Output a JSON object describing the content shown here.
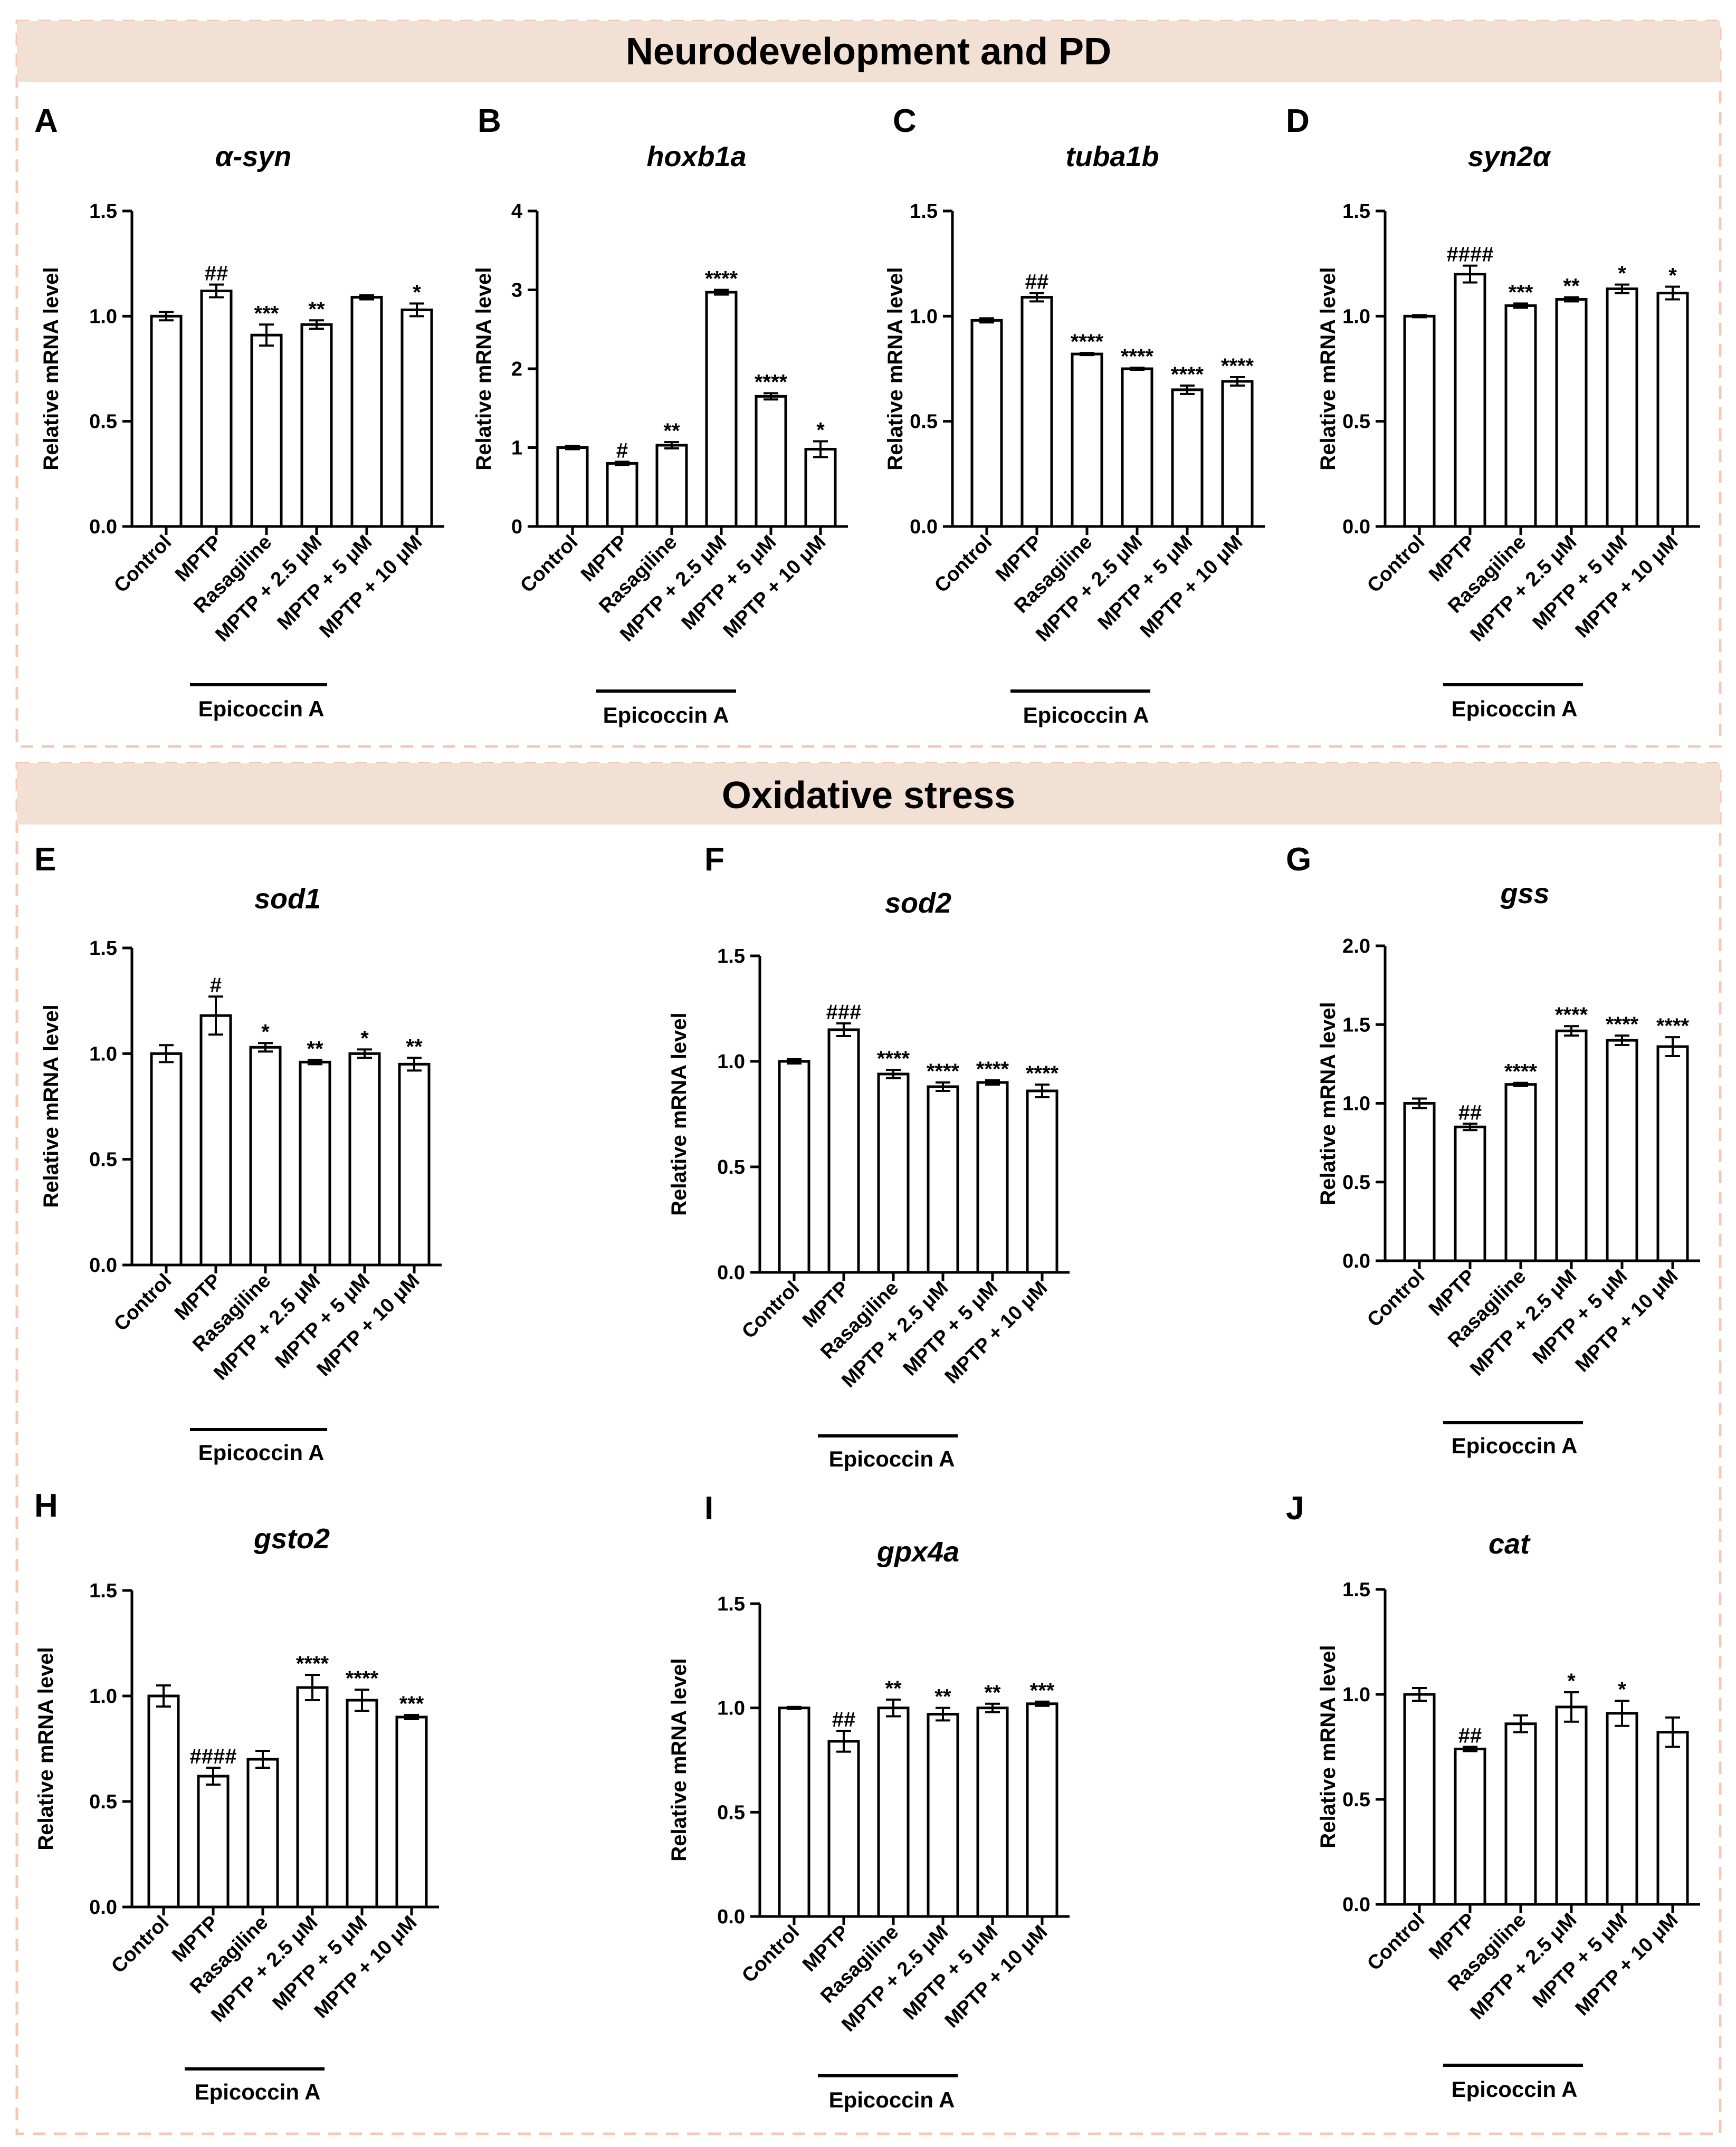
{
  "sections": [
    {
      "title": "Neurodevelopment and PD"
    },
    {
      "title": "Oxidative stress"
    }
  ],
  "categories": [
    "Control",
    "MPTP",
    "Rasagiline",
    "MPTP + 2.5 μM",
    "MPTP + 5 μM",
    "MPTP + 10 μM"
  ],
  "group_label": "Epicoccin A",
  "chart_data": [
    {
      "type": "bar",
      "panel": "A",
      "title": "α-syn",
      "ylabel": "Relative mRNA level",
      "ylim": [
        0,
        1.5
      ],
      "yticks": [
        "0.0",
        "0.5",
        "1.0",
        "1.5"
      ],
      "values": [
        1.0,
        1.12,
        0.91,
        0.96,
        1.09,
        1.03
      ],
      "errors": [
        0.02,
        0.03,
        0.05,
        0.02,
        0.01,
        0.03
      ],
      "annotations": [
        "",
        "##",
        "***",
        "**",
        "",
        "*"
      ]
    },
    {
      "type": "bar",
      "panel": "B",
      "title": "hoxb1a",
      "ylabel": "Relative mRNA level",
      "ylim": [
        0,
        4
      ],
      "yticks": [
        "0",
        "1",
        "2",
        "3",
        "4"
      ],
      "values": [
        1.0,
        0.8,
        1.03,
        2.97,
        1.65,
        0.98
      ],
      "errors": [
        0.02,
        0.02,
        0.04,
        0.03,
        0.04,
        0.1
      ],
      "annotations": [
        "",
        "#",
        "**",
        "****",
        "****",
        "*"
      ]
    },
    {
      "type": "bar",
      "panel": "C",
      "title": "tuba1b",
      "ylabel": "Relative mRNA level",
      "ylim": [
        0,
        1.5
      ],
      "yticks": [
        "0.0",
        "0.5",
        "1.0",
        "1.5"
      ],
      "values": [
        0.98,
        1.09,
        0.82,
        0.75,
        0.65,
        0.69
      ],
      "errors": [
        0.01,
        0.02,
        0.005,
        0.005,
        0.02,
        0.02
      ],
      "annotations": [
        "",
        "##",
        "****",
        "****",
        "****",
        "****"
      ]
    },
    {
      "type": "bar",
      "panel": "D",
      "title": "syn2α",
      "ylabel": "Relative mRNA level",
      "ylim": [
        0,
        1.5
      ],
      "yticks": [
        "0.0",
        "0.5",
        "1.0",
        "1.5"
      ],
      "values": [
        1.0,
        1.2,
        1.05,
        1.08,
        1.13,
        1.11
      ],
      "errors": [
        0.005,
        0.04,
        0.01,
        0.01,
        0.02,
        0.03
      ],
      "annotations": [
        "",
        "####",
        "***",
        "**",
        "*",
        "*"
      ]
    },
    {
      "type": "bar",
      "panel": "E",
      "title": "sod1",
      "ylabel": "Relative mRNA level",
      "ylim": [
        0,
        1.5
      ],
      "yticks": [
        "0.0",
        "0.5",
        "1.0",
        "1.5"
      ],
      "values": [
        1.0,
        1.18,
        1.03,
        0.96,
        1.0,
        0.95
      ],
      "errors": [
        0.04,
        0.09,
        0.02,
        0.01,
        0.02,
        0.03
      ],
      "annotations": [
        "",
        "#",
        "*",
        "**",
        "*",
        "**"
      ]
    },
    {
      "type": "bar",
      "panel": "F",
      "title": "sod2",
      "ylabel": "Relative mRNA level",
      "ylim": [
        0,
        1.5
      ],
      "yticks": [
        "0.0",
        "0.5",
        "1.0",
        "1.5"
      ],
      "values": [
        1.0,
        1.15,
        0.94,
        0.88,
        0.9,
        0.86
      ],
      "errors": [
        0.01,
        0.03,
        0.02,
        0.02,
        0.01,
        0.03
      ],
      "annotations": [
        "",
        "###",
        "****",
        "****",
        "****",
        "****"
      ]
    },
    {
      "type": "bar",
      "panel": "G",
      "title": "gss",
      "ylabel": "Relative mRNA level",
      "ylim": [
        0,
        2.0
      ],
      "yticks": [
        "0.0",
        "0.5",
        "1.0",
        "1.5",
        "2.0"
      ],
      "values": [
        1.0,
        0.85,
        1.12,
        1.46,
        1.4,
        1.36
      ],
      "errors": [
        0.03,
        0.02,
        0.01,
        0.03,
        0.03,
        0.06
      ],
      "annotations": [
        "",
        "##",
        "****",
        "****",
        "****",
        "****"
      ]
    },
    {
      "type": "bar",
      "panel": "H",
      "title": "gsto2",
      "ylabel": "Relative mRNA level",
      "ylim": [
        0,
        1.5
      ],
      "yticks": [
        "0.0",
        "0.5",
        "1.0",
        "1.5"
      ],
      "values": [
        1.0,
        0.62,
        0.7,
        1.04,
        0.98,
        0.9
      ],
      "errors": [
        0.05,
        0.04,
        0.04,
        0.06,
        0.05,
        0.01
      ],
      "annotations": [
        "",
        "####",
        "",
        "****",
        "****",
        "***"
      ]
    },
    {
      "type": "bar",
      "panel": "I",
      "title": "gpx4a",
      "ylabel": "Relative mRNA level",
      "ylim": [
        0,
        1.5
      ],
      "yticks": [
        "0.0",
        "0.5",
        "1.0",
        "1.5"
      ],
      "values": [
        1.0,
        0.84,
        1.0,
        0.97,
        1.0,
        1.02
      ],
      "errors": [
        0.005,
        0.05,
        0.04,
        0.03,
        0.02,
        0.01
      ],
      "annotations": [
        "",
        "##",
        "**",
        "**",
        "**",
        "***"
      ]
    },
    {
      "type": "bar",
      "panel": "J",
      "title": "cat",
      "ylabel": "Relative mRNA level",
      "ylim": [
        0,
        1.5
      ],
      "yticks": [
        "0.0",
        "0.5",
        "1.0",
        "1.5"
      ],
      "values": [
        1.0,
        0.74,
        0.86,
        0.94,
        0.91,
        0.82
      ],
      "errors": [
        0.03,
        0.01,
        0.04,
        0.07,
        0.06,
        0.07
      ],
      "annotations": [
        "",
        "##",
        "",
        "*",
        "*",
        ""
      ]
    }
  ]
}
